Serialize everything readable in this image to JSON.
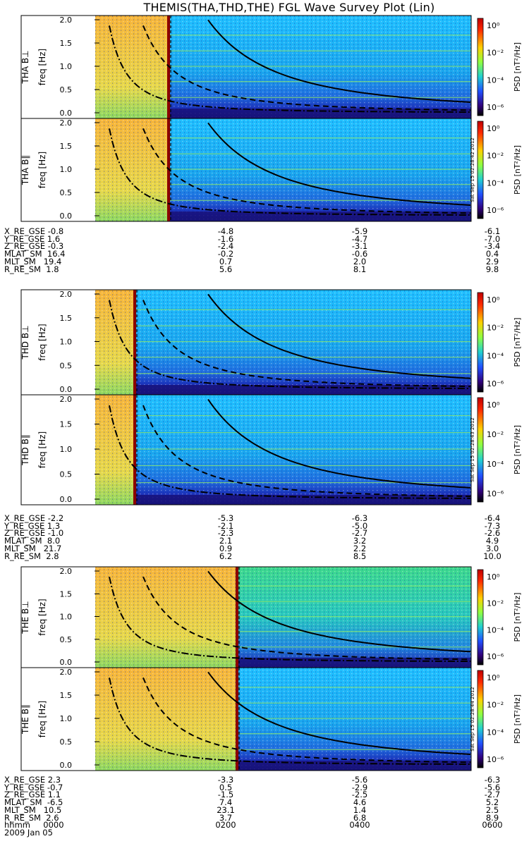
{
  "title": "THEMIS(THA,THD,THE) FGL Wave Survey Plot (Lin)",
  "freq_axis_label": "freq [Hz]",
  "freq_ticks": [
    "0.0",
    "0.5",
    "1.0",
    "1.5",
    "2.0"
  ],
  "colorbar": {
    "label": "PSD [nT²/Hz]",
    "ticks": [
      "10⁰",
      "10⁻²",
      "10⁻⁴",
      "10⁻⁶"
    ]
  },
  "side_stamps": [
    "Sat Sep 15 02:28:42 2012",
    "Sat Sep 15 02:28:43 2012",
    "Sat Sep 15 02:28:44 2012"
  ],
  "chart_data": {
    "type": "heatmap",
    "x_axis": {
      "label": "hhmm",
      "ticks": [
        "0000",
        "0200",
        "0400",
        "0600"
      ],
      "date": "2009 Jan 05"
    },
    "ylim": [
      0,
      2
    ],
    "color_scale": "log PSD 10^-6 .. 10^1 nT^2/Hz, rainbow",
    "panels": [
      {
        "ylabel": "THA B⊥",
        "probe": "THA"
      },
      {
        "ylabel": "THA B∥",
        "probe": "THA"
      },
      {
        "ylabel": "THD B⊥",
        "probe": "THD"
      },
      {
        "ylabel": "THD B∥",
        "probe": "THD"
      },
      {
        "ylabel": "THE B⊥",
        "probe": "THE"
      },
      {
        "ylabel": "THE B∥",
        "probe": "THE"
      }
    ],
    "ephemeris": [
      {
        "labels": [
          "X_RE_GSE",
          "Y_RE_GSE",
          "Z_RE_GSE",
          "MLAT_SM",
          "MLT_SM",
          "R_RE_SM"
        ],
        "columns": [
          [
            "-0.8",
            "1.6",
            "-0.3",
            "16.4",
            "19.4",
            "1.8"
          ],
          [
            "-4.8",
            "-1.6",
            "-2.4",
            "-0.2",
            "0.7",
            "5.6"
          ],
          [
            "-5.9",
            "-4.7",
            "-3.1",
            "-0.6",
            "2.0",
            "8.1"
          ],
          [
            "-6.1",
            "-7.0",
            "-3.4",
            "0.4",
            "2.9",
            "9.8"
          ]
        ]
      },
      {
        "labels": [
          "X_RE_GSE",
          "Y_RE_GSE",
          "Z_RE_GSE",
          "MLAT_SM",
          "MLT_SM",
          "R_RE_SM"
        ],
        "columns": [
          [
            "-2.2",
            "1.3",
            "-1.0",
            "8.0",
            "21.7",
            "2.8"
          ],
          [
            "-5.3",
            "-2.1",
            "-2.3",
            "2.1",
            "0.9",
            "6.2"
          ],
          [
            "-6.3",
            "-5.0",
            "-2.7",
            "3.2",
            "2.2",
            "8.5"
          ],
          [
            "-6.4",
            "-7.3",
            "-2.6",
            "4.9",
            "3.0",
            "10.0"
          ]
        ]
      },
      {
        "labels": [
          "X_RE_GSE",
          "Y_RE_GSE",
          "Z_RE_GSE",
          "MLAT_SM",
          "MLT_SM",
          "R_RE_SM"
        ],
        "columns": [
          [
            "2.3",
            "-0.7",
            "1.1",
            "-6.5",
            "10.5",
            "2.6"
          ],
          [
            "-3.3",
            "0.5",
            "-1.5",
            "7.4",
            "23.1",
            "3.7"
          ],
          [
            "-5.6",
            "-2.9",
            "-2.5",
            "4.6",
            "1.4",
            "6.8"
          ],
          [
            "-6.3",
            "-5.6",
            "-2.7",
            "5.2",
            "2.5",
            "8.9"
          ]
        ]
      }
    ]
  }
}
